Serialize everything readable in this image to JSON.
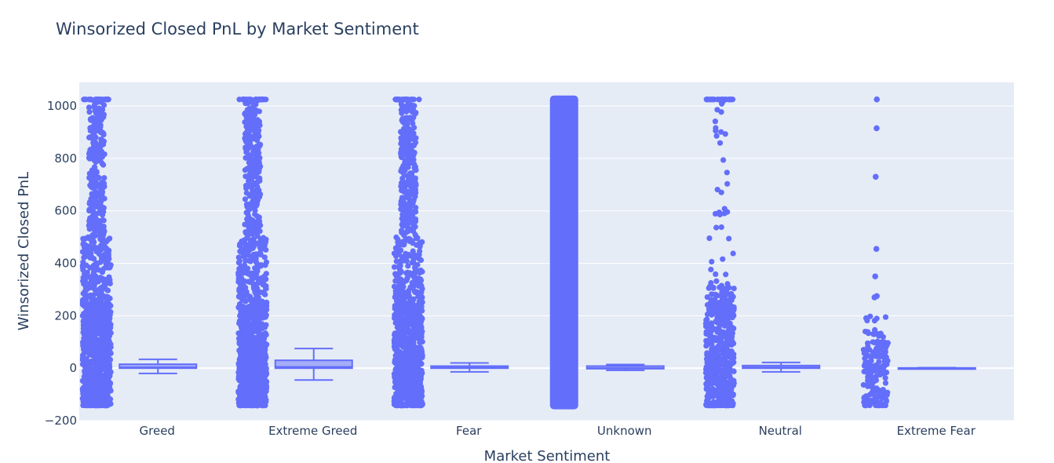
{
  "chart_data": {
    "type": "box",
    "title": "Winsorized Closed PnL by Market Sentiment",
    "xlabel": "Market Sentiment",
    "ylabel": "Winsorized Closed PnL",
    "ylim": [
      -200,
      1090
    ],
    "yticks": [
      -200,
      0,
      200,
      400,
      600,
      800,
      1000
    ],
    "ytick_labels": [
      "−200",
      "0",
      "200",
      "400",
      "600",
      "800",
      "1000"
    ],
    "grid": true,
    "legend": "none",
    "point_color": "#636efa",
    "plot_bg": "#e5ecf6",
    "categories": [
      "Greed",
      "Extreme Greed",
      "Fear",
      "Unknown",
      "Neutral",
      "Extreme Fear"
    ],
    "series": [
      {
        "category": "Greed",
        "lower_fence": -20,
        "q1": 0,
        "median": 3,
        "q3": 15,
        "upper_fence": 34,
        "points_min": -142,
        "points_max": 1025,
        "density": "high"
      },
      {
        "category": "Extreme Greed",
        "lower_fence": -45,
        "q1": 0,
        "median": 5,
        "q3": 30,
        "upper_fence": 75,
        "points_min": -142,
        "points_max": 1025,
        "density": "high"
      },
      {
        "category": "Fear",
        "lower_fence": -14,
        "q1": 0,
        "median": 2,
        "q3": 8,
        "upper_fence": 20,
        "points_min": -142,
        "points_max": 1025,
        "density": "high"
      },
      {
        "category": "Unknown",
        "lower_fence": -8,
        "q1": -2,
        "median": 0,
        "q3": 8,
        "upper_fence": 14,
        "points_min": -142,
        "points_max": 1025,
        "density": "very_high"
      },
      {
        "category": "Neutral",
        "lower_fence": -14,
        "q1": 0,
        "median": 3,
        "q3": 10,
        "upper_fence": 22,
        "points_min": -142,
        "points_max": 1025,
        "density": "medium"
      },
      {
        "category": "Extreme Fear",
        "lower_fence": -2,
        "q1": -1,
        "median": 0,
        "q3": 1,
        "upper_fence": 2,
        "points_min": -142,
        "points_max": 1025,
        "density": "low",
        "outliers": [
          1025,
          915,
          730,
          455,
          350,
          275,
          270
        ]
      }
    ]
  }
}
